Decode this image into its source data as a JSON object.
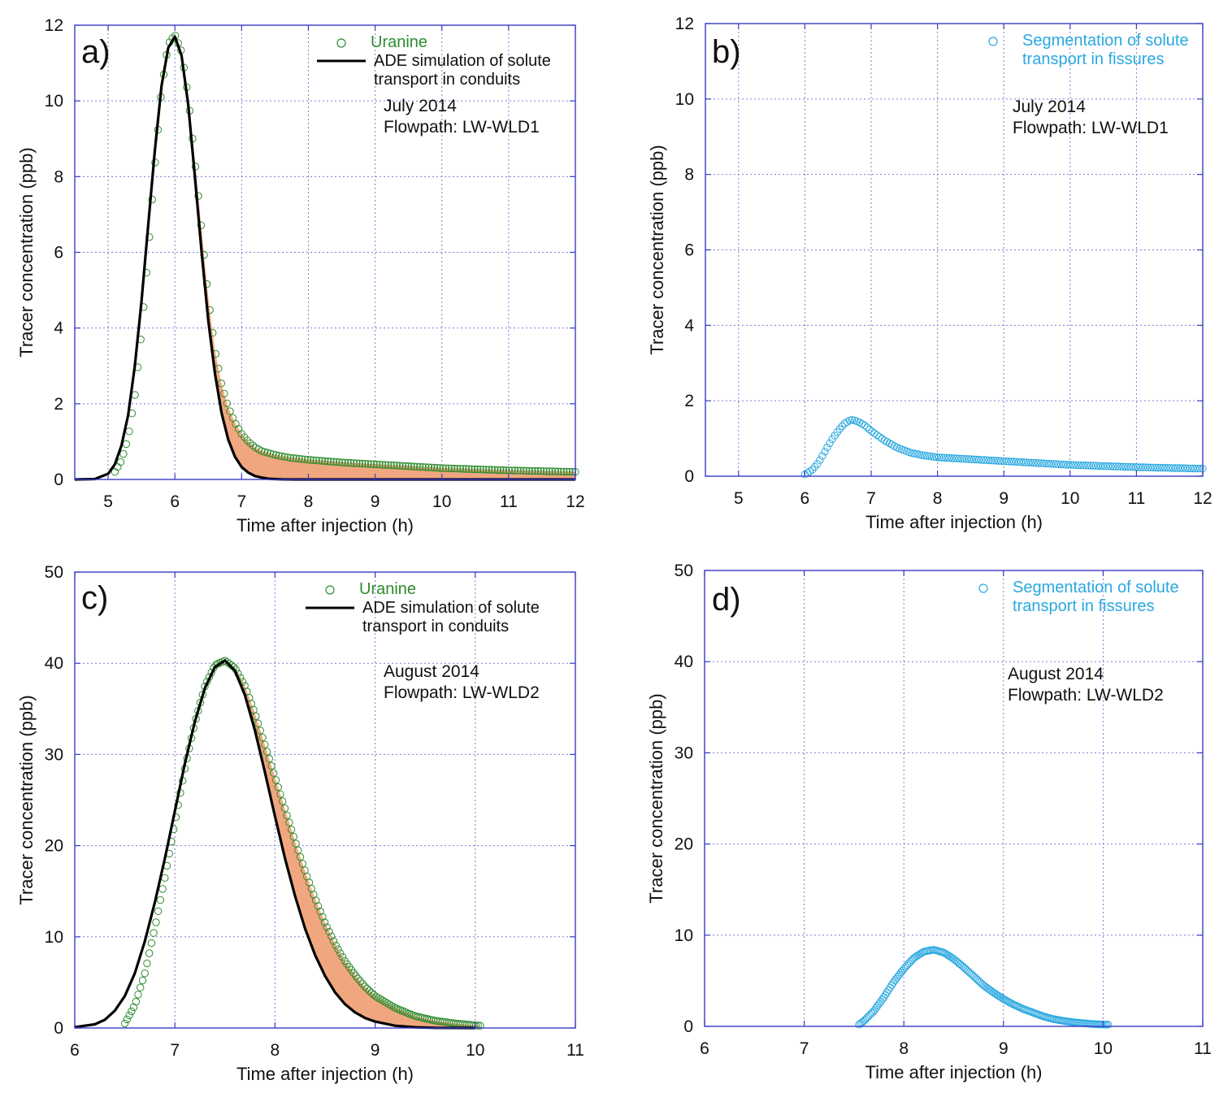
{
  "figure": {
    "colors": {
      "uranine": "#2e8b2e",
      "fissure": "#29a8e0",
      "ade": "#000000",
      "fill": "#f0a77f",
      "frame": "#3b3bc8",
      "grid": "#7b7bd6"
    }
  },
  "chart_data": [
    {
      "id": "a",
      "panel_label": "a)",
      "type": "scatter",
      "title": "",
      "xlabel": "Time after injection (h)",
      "ylabel": "Tracer concentration (ppb)",
      "xlim": [
        4.5,
        12
      ],
      "ylim": [
        0,
        12
      ],
      "xticks": [
        5,
        6,
        7,
        8,
        9,
        10,
        11,
        12
      ],
      "yticks": [
        0,
        2,
        4,
        6,
        8,
        10,
        12
      ],
      "grid": true,
      "legend": {
        "position": "top-right",
        "entries": [
          {
            "label": "Uranine",
            "marker": "circle",
            "color": "#2e8b2e"
          },
          {
            "label": "ADE simulation of solute transport in conduits",
            "label_lines": [
              "ADE simulation of solute",
              "transport in conduits"
            ],
            "marker": "line",
            "color": "#000000"
          }
        ]
      },
      "annotations": [
        "July 2014",
        "Flowpath: LW-WLD1"
      ],
      "series": [
        {
          "name": "Uranine",
          "kind": "scatter",
          "color": "#2e8b2e",
          "x": [
            5.1,
            5.2,
            5.3,
            5.4,
            5.5,
            5.6,
            5.7,
            5.8,
            5.9,
            6.0,
            6.1,
            6.2,
            6.3,
            6.4,
            6.5,
            6.6,
            6.7,
            6.8,
            6.9,
            7.0,
            7.1,
            7.2,
            7.3,
            7.5,
            7.7,
            8.0,
            8.5,
            9.0,
            9.5,
            10.0,
            10.5,
            11.0,
            11.5,
            12.0
          ],
          "y": [
            0.2,
            0.5,
            1.1,
            2.2,
            3.9,
            6.0,
            8.3,
            10.3,
            11.5,
            11.75,
            11.3,
            10.1,
            8.4,
            6.6,
            4.8,
            3.4,
            2.5,
            1.9,
            1.5,
            1.2,
            1.0,
            0.85,
            0.75,
            0.65,
            0.58,
            0.52,
            0.45,
            0.4,
            0.35,
            0.3,
            0.27,
            0.24,
            0.22,
            0.2
          ]
        },
        {
          "name": "ADE simulation of solute transport in conduits",
          "kind": "line",
          "color": "#000000",
          "x": [
            4.5,
            4.8,
            5.0,
            5.1,
            5.2,
            5.3,
            5.4,
            5.5,
            5.6,
            5.7,
            5.8,
            5.9,
            6.0,
            6.1,
            6.2,
            6.3,
            6.4,
            6.5,
            6.6,
            6.7,
            6.8,
            6.9,
            7.0,
            7.1,
            7.2,
            7.3,
            7.4,
            7.5,
            7.6,
            7.8,
            8.0,
            12.0
          ],
          "y": [
            0,
            0.01,
            0.15,
            0.4,
            0.9,
            1.7,
            3.0,
            4.7,
            6.7,
            8.7,
            10.4,
            11.4,
            11.7,
            11.2,
            9.9,
            8.0,
            6.0,
            4.2,
            2.8,
            1.75,
            1.05,
            0.6,
            0.33,
            0.18,
            0.09,
            0.05,
            0.02,
            0.01,
            0.005,
            0,
            0,
            0
          ]
        }
      ],
      "shaded_between": [
        "Uranine",
        "ADE simulation of solute transport in conduits"
      ]
    },
    {
      "id": "b",
      "panel_label": "b)",
      "type": "scatter",
      "title": "",
      "xlabel": "Time after injection (h)",
      "ylabel": "Tracer concentration (ppb)",
      "xlim": [
        4.5,
        12
      ],
      "ylim": [
        0,
        12
      ],
      "xticks": [
        5,
        6,
        7,
        8,
        9,
        10,
        11,
        12
      ],
      "yticks": [
        0,
        2,
        4,
        6,
        8,
        10,
        12
      ],
      "grid": true,
      "legend": {
        "position": "top-right",
        "entries": [
          {
            "label": "Segmentation of solute transport in fissures",
            "label_lines": [
              "Segmentation of solute",
              "transport in fissures"
            ],
            "marker": "circle",
            "color": "#29a8e0"
          }
        ]
      },
      "annotations": [
        "July 2014",
        "Flowpath: LW-WLD1"
      ],
      "series": [
        {
          "name": "Segmentation of solute transport in fissures",
          "kind": "scatter",
          "color": "#29a8e0",
          "x": [
            6.0,
            6.1,
            6.2,
            6.3,
            6.4,
            6.5,
            6.6,
            6.7,
            6.8,
            6.9,
            7.0,
            7.2,
            7.4,
            7.6,
            7.8,
            8.0,
            8.5,
            9.0,
            9.5,
            10.0,
            10.5,
            11.0,
            11.5,
            12.0
          ],
          "y": [
            0.05,
            0.15,
            0.35,
            0.65,
            0.95,
            1.2,
            1.4,
            1.5,
            1.45,
            1.35,
            1.2,
            0.95,
            0.75,
            0.62,
            0.55,
            0.5,
            0.45,
            0.4,
            0.35,
            0.3,
            0.27,
            0.24,
            0.22,
            0.2
          ]
        }
      ]
    },
    {
      "id": "c",
      "panel_label": "c)",
      "type": "scatter",
      "title": "",
      "xlabel": "Time after injection (h)",
      "ylabel": "Tracer concentration (ppb)",
      "xlim": [
        6,
        11
      ],
      "ylim": [
        0,
        50
      ],
      "xticks": [
        6,
        7,
        8,
        9,
        10,
        11
      ],
      "yticks": [
        0,
        10,
        20,
        30,
        40,
        50
      ],
      "grid": true,
      "legend": {
        "position": "top-right",
        "entries": [
          {
            "label": "Uranine",
            "marker": "circle",
            "color": "#2e8b2e"
          },
          {
            "label": "ADE simulation of solute transport in conduits",
            "label_lines": [
              "ADE simulation of solute",
              "transport in conduits"
            ],
            "marker": "line",
            "color": "#000000"
          }
        ]
      },
      "annotations": [
        "August 2014",
        "Flowpath: LW-WLD2"
      ],
      "series": [
        {
          "name": "Uranine",
          "kind": "scatter",
          "color": "#2e8b2e",
          "x": [
            6.5,
            6.6,
            6.7,
            6.8,
            6.9,
            7.0,
            7.1,
            7.2,
            7.3,
            7.4,
            7.5,
            7.6,
            7.7,
            7.8,
            7.9,
            8.0,
            8.1,
            8.2,
            8.3,
            8.4,
            8.5,
            8.6,
            8.7,
            8.8,
            8.9,
            9.0,
            9.2,
            9.4,
            9.6,
            9.8,
            10.0,
            10.05
          ],
          "y": [
            0.5,
            2.5,
            6.0,
            11.0,
            16.5,
            22.5,
            28.5,
            33.5,
            37.5,
            39.8,
            40.3,
            39.5,
            37.5,
            34.5,
            31.0,
            27.5,
            24.0,
            20.5,
            17.2,
            14.2,
            11.5,
            9.2,
            7.3,
            5.8,
            4.5,
            3.5,
            2.2,
            1.3,
            0.8,
            0.5,
            0.3,
            0.25
          ]
        },
        {
          "name": "ADE simulation of solute transport in conduits",
          "kind": "line",
          "color": "#000000",
          "x": [
            6.0,
            6.2,
            6.3,
            6.4,
            6.5,
            6.6,
            6.7,
            6.8,
            6.9,
            7.0,
            7.1,
            7.2,
            7.3,
            7.4,
            7.5,
            7.6,
            7.7,
            7.8,
            7.9,
            8.0,
            8.1,
            8.2,
            8.3,
            8.4,
            8.5,
            8.6,
            8.7,
            8.8,
            8.9,
            9.0,
            9.2,
            9.4,
            9.6,
            10.0
          ],
          "y": [
            0.1,
            0.4,
            0.9,
            1.9,
            3.5,
            6.0,
            9.5,
            13.8,
            18.6,
            23.8,
            29.0,
            33.6,
            37.3,
            39.6,
            40.3,
            39.2,
            36.5,
            32.6,
            28.0,
            23.2,
            18.6,
            14.5,
            10.9,
            8.0,
            5.7,
            3.9,
            2.6,
            1.7,
            1.1,
            0.7,
            0.25,
            0.08,
            0.02,
            0
          ]
        }
      ],
      "shaded_between": [
        "Uranine",
        "ADE simulation of solute transport in conduits"
      ]
    },
    {
      "id": "d",
      "panel_label": "d)",
      "type": "scatter",
      "title": "",
      "xlabel": "Time after injection (h)",
      "ylabel": "Tracer concentration (ppb)",
      "xlim": [
        6,
        11
      ],
      "ylim": [
        0,
        50
      ],
      "xticks": [
        6,
        7,
        8,
        9,
        10,
        11
      ],
      "yticks": [
        0,
        10,
        20,
        30,
        40,
        50
      ],
      "grid": true,
      "legend": {
        "position": "top-right",
        "entries": [
          {
            "label": "Segmentation of solute transport in fissures",
            "label_lines": [
              "Segmentation of solute",
              "transport in fissures"
            ],
            "marker": "circle",
            "color": "#29a8e0"
          }
        ]
      },
      "annotations": [
        "August 2014",
        "Flowpath: LW-WLD2"
      ],
      "series": [
        {
          "name": "Segmentation of solute transport in fissures",
          "kind": "scatter",
          "color": "#29a8e0",
          "x": [
            7.55,
            7.6,
            7.7,
            7.8,
            7.9,
            8.0,
            8.1,
            8.2,
            8.3,
            8.4,
            8.5,
            8.6,
            8.7,
            8.8,
            8.9,
            9.0,
            9.1,
            9.2,
            9.3,
            9.4,
            9.5,
            9.6,
            9.7,
            9.8,
            9.9,
            10.0,
            10.05
          ],
          "y": [
            0.2,
            0.6,
            1.7,
            3.2,
            4.9,
            6.3,
            7.5,
            8.2,
            8.4,
            8.1,
            7.4,
            6.5,
            5.5,
            4.5,
            3.7,
            3.0,
            2.4,
            1.9,
            1.5,
            1.1,
            0.8,
            0.6,
            0.45,
            0.35,
            0.25,
            0.2,
            0.2
          ]
        }
      ]
    }
  ]
}
